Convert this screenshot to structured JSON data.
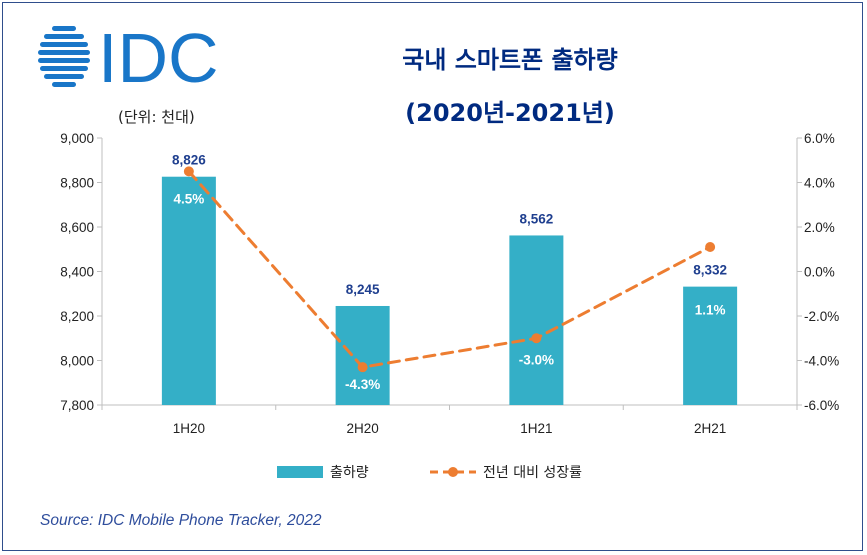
{
  "logo_text": "IDC",
  "title_line1": "국내 스마트폰 출하량",
  "title_line2": "(2020년-2021년)",
  "unit_label": "(단위: 천대)",
  "source": "Source: IDC Mobile Phone Tracker, 2022",
  "colors": {
    "bar": "#34afc7",
    "line": "#ed7d31",
    "title": "#002a80",
    "bar_label": "#1f3f8f"
  },
  "chart_data": {
    "type": "bar+line",
    "categories": [
      "1H20",
      "2H20",
      "1H21",
      "2H21"
    ],
    "series": [
      {
        "name": "출하량",
        "type": "bar",
        "axis": "left",
        "values": [
          8826,
          8245,
          8562,
          8332
        ],
        "labels": [
          "8,826",
          "8,245",
          "8,562",
          "8,332"
        ]
      },
      {
        "name": "전년 대비 성장률",
        "type": "line",
        "axis": "right",
        "values": [
          4.5,
          -4.3,
          -3.0,
          1.1
        ],
        "labels": [
          "4.5%",
          "-4.3%",
          "-3.0%",
          "1.1%"
        ]
      }
    ],
    "left_axis": {
      "min": 7800,
      "max": 9000,
      "step": 200,
      "ticks": [
        "7,800",
        "8,000",
        "8,200",
        "8,400",
        "8,600",
        "8,800",
        "9,000"
      ]
    },
    "right_axis": {
      "min": -6,
      "max": 6,
      "step": 2,
      "ticks": [
        "-6.0%",
        "-4.0%",
        "-2.0%",
        "0.0%",
        "2.0%",
        "4.0%",
        "6.0%"
      ]
    },
    "legend_position": "bottom",
    "grid": false
  }
}
